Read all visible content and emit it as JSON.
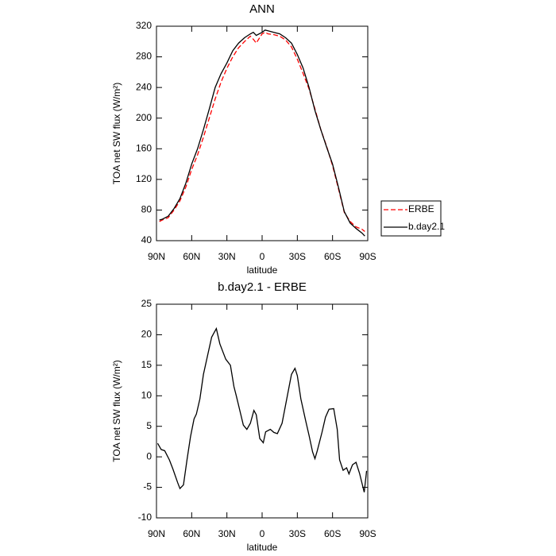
{
  "chart_data": [
    {
      "type": "line",
      "title": "ANN",
      "x_label": "latitude",
      "y_label": "TOA net SW flux (W/m²)",
      "x": [
        87.5,
        85,
        80,
        75,
        70,
        65,
        60,
        55,
        50,
        45,
        40,
        35,
        30,
        25,
        20,
        15,
        10,
        7.5,
        5,
        0,
        -2.5,
        -5,
        -10,
        -15,
        -20,
        -25,
        -30,
        -35,
        -40,
        -45,
        -50,
        -55,
        -60,
        -65,
        -70,
        -75,
        -80,
        -85,
        -87.5
      ],
      "series": [
        {
          "name": "ERBE",
          "color": "#ff0000",
          "dash": "dashed",
          "values": [
            65,
            67,
            70,
            80,
            92,
            110,
            133,
            152,
            175,
            200,
            225,
            247,
            265,
            280,
            292,
            300,
            307,
            303,
            298,
            310,
            312,
            310,
            309,
            307,
            302,
            293,
            277,
            258,
            238,
            212,
            185,
            163,
            138,
            108,
            77,
            65,
            58,
            55,
            52
          ]
        },
        {
          "name": "b.day2.1",
          "color": "#000000",
          "values": [
            67,
            68,
            72,
            82,
            95,
            115,
            140,
            160,
            185,
            212,
            240,
            258,
            272,
            288,
            298,
            305,
            310,
            312,
            308,
            312,
            315,
            314,
            312,
            310,
            305,
            298,
            283,
            265,
            240,
            210,
            185,
            162,
            140,
            110,
            78,
            63,
            56,
            50,
            46
          ]
        }
      ],
      "xlim": [
        90,
        -90
      ],
      "xticks": [
        {
          "value": 90,
          "label": "90N"
        },
        {
          "value": 60,
          "label": "60N"
        },
        {
          "value": 30,
          "label": "30N"
        },
        0,
        {
          "value": -30,
          "label": "30S"
        },
        {
          "value": -60,
          "label": "60S"
        },
        {
          "value": -90,
          "label": "90S"
        }
      ],
      "ylim": [
        40,
        320
      ],
      "yticks": [
        40,
        80,
        120,
        160,
        200,
        240,
        280,
        320
      ],
      "legend": "right"
    },
    {
      "type": "line",
      "title": "b.day2.1 - ERBE",
      "x_label": "latitude",
      "y_label": "TOA net SW flux (W/m²)",
      "x": [
        89,
        86,
        83,
        79,
        76,
        72,
        70,
        67,
        64,
        61,
        58,
        56,
        53,
        50,
        46,
        43,
        41,
        39,
        36,
        31,
        27,
        24,
        22,
        18,
        16,
        13,
        10,
        7,
        5,
        2,
        -1,
        -3,
        -7,
        -10,
        -13,
        -17,
        -21,
        -25,
        -28,
        -30,
        -33,
        -37,
        -40,
        -43,
        -45,
        -47,
        -51,
        -54,
        -57,
        -61,
        -64,
        -66,
        -69,
        -72,
        -74,
        -77,
        -80,
        -83,
        -87,
        -89
      ],
      "series": [
        {
          "color": "#000000",
          "values": [
            2.2,
            1.2,
            1,
            -0.5,
            -2,
            -4.2,
            -5.2,
            -4.6,
            -0.5,
            3.3,
            6.2,
            7,
            9.5,
            13.5,
            17,
            19.6,
            20.3,
            21,
            18.5,
            16,
            15,
            11.5,
            10,
            6.8,
            5.2,
            4.5,
            5.5,
            7.6,
            6.9,
            3,
            2.3,
            4.1,
            4.5,
            4,
            3.8,
            5.5,
            9.5,
            13.5,
            14.5,
            13.3,
            9.5,
            6,
            3.5,
            0.8,
            -0.3,
            1,
            4,
            6.5,
            7.8,
            7.9,
            4.5,
            -0.5,
            -2.2,
            -1.8,
            -2.8,
            -1.3,
            -0.9,
            -2.7,
            -5.8,
            -2.3
          ]
        }
      ],
      "xlim": [
        90,
        -90
      ],
      "xticks": [
        {
          "value": 90,
          "label": "90N"
        },
        {
          "value": 60,
          "label": "60N"
        },
        {
          "value": 30,
          "label": "30N"
        },
        0,
        {
          "value": -30,
          "label": "30S"
        },
        {
          "value": -60,
          "label": "60S"
        },
        {
          "value": -90,
          "label": "90S"
        }
      ],
      "ylim": [
        -10,
        25
      ],
      "yticks": [
        -10,
        -5,
        0,
        5,
        10,
        15,
        20,
        25
      ]
    }
  ]
}
